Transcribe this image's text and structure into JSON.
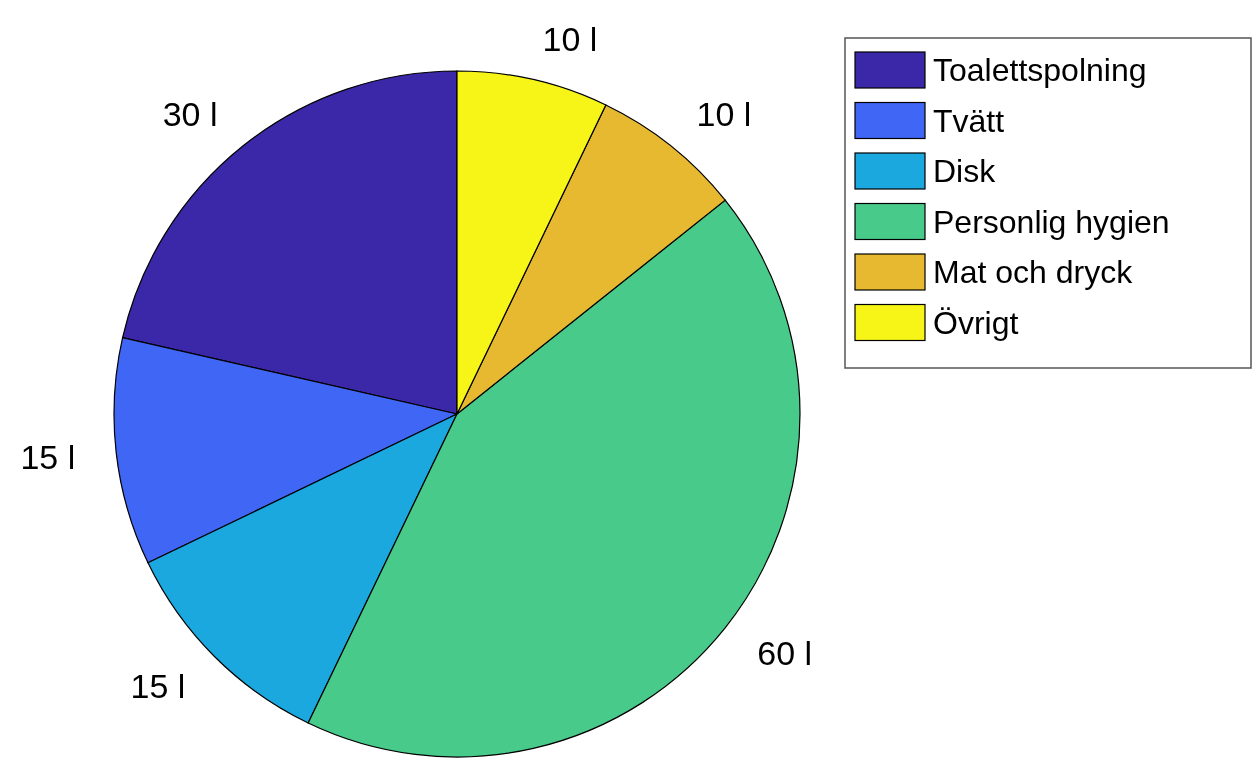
{
  "chart_data": {
    "type": "pie",
    "categories": [
      "Toalettspolning",
      "Tvätt",
      "Disk",
      "Personlig hygien",
      "Mat och dryck",
      "Övrigt"
    ],
    "values": [
      30,
      15,
      15,
      60,
      10,
      10
    ],
    "colors": [
      "#3b28a8",
      "#3f66f5",
      "#1ba8df",
      "#48cb8a",
      "#e6b930",
      "#f7f518"
    ],
    "value_labels": [
      "30 l",
      "15 l",
      "15 l",
      "60 l",
      "10 l",
      "10 l"
    ],
    "legend": "top right"
  }
}
